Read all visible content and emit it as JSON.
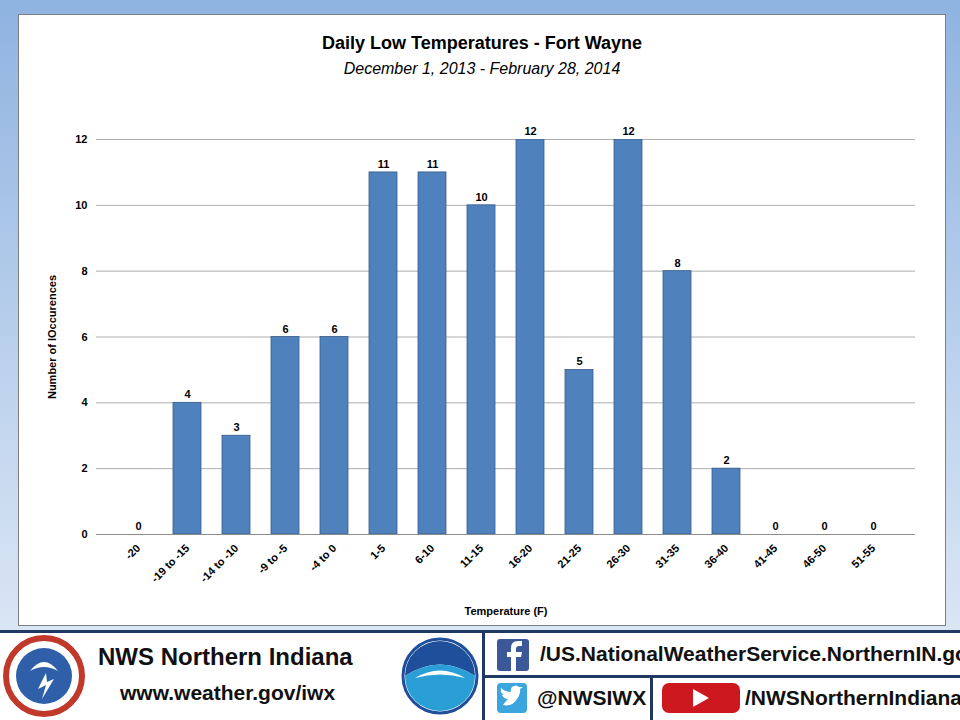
{
  "chart_data": {
    "type": "bar",
    "title": "Daily Low Temperatures - Fort Wayne",
    "subtitle": "December 1, 2013 - February 28, 2014",
    "x_label": "Temperature (F)",
    "y_label": "Number of lOccurences",
    "categories": [
      "-20",
      "-19 to -15",
      "-14 to -10",
      "-9 to -5",
      "-4 to 0",
      "1-5",
      "6-10",
      "11-15",
      "16-20",
      "21-25",
      "26-30",
      "31-35",
      "36-40",
      "41-45",
      "46-50",
      "51-55"
    ],
    "values": [
      0,
      4,
      3,
      6,
      6,
      11,
      11,
      10,
      12,
      5,
      12,
      8,
      2,
      0,
      0,
      0
    ],
    "color": "#4f81bd",
    "ylim": [
      0,
      12
    ],
    "yticks": [
      0,
      2,
      4,
      6,
      8,
      10,
      12
    ],
    "grid": true,
    "data_labels": true
  },
  "footer": {
    "name": "NWS Northern Indiana",
    "url": "www.weather.gov/iwx",
    "facebook": "/US.NationalWeatherService.NorthernIN.gov",
    "twitter": "@NWSIWX",
    "youtube": "/NWSNorthernIndiana"
  }
}
